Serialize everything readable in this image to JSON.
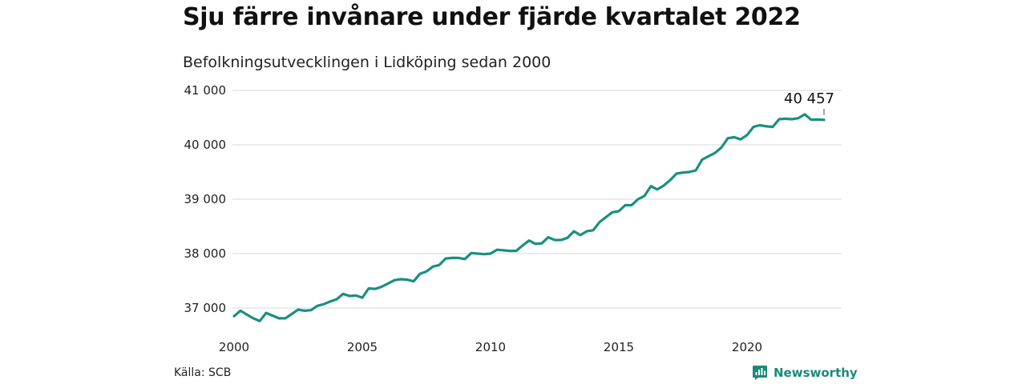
{
  "title": "Sju färre invånare under fjärde kvartalet 2022",
  "subtitle": "Befolkningsutvecklingen i Lidköping sedan 2000",
  "source": "Källa: SCB",
  "brand": {
    "name": "Newsworthy",
    "icon": "newsworthy-logo-icon",
    "color": "#1a8a7a"
  },
  "chart_data": {
    "type": "line",
    "title": "Sju färre invånare under fjärde kvartalet 2022",
    "subtitle": "Befolkningsutvecklingen i Lidköping sedan 2000",
    "xlabel": "",
    "ylabel": "",
    "grid": true,
    "line_color": "#1a9080",
    "xlim": [
      2000.0,
      2023.3
    ],
    "ylim": [
      36800,
      41000
    ],
    "x_ticks": [
      2000,
      2005,
      2010,
      2015,
      2020
    ],
    "x_tick_labels": [
      "2000",
      "2005",
      "2010",
      "2015",
      "2020"
    ],
    "y_ticks": [
      37000,
      38000,
      39000,
      40000,
      41000
    ],
    "y_tick_labels": [
      "37 000",
      "38 000",
      "39 000",
      "40 000",
      "41 000"
    ],
    "end_label": "40 457",
    "series": [
      {
        "x": [
          2000.0,
          2000.25,
          2000.5,
          2000.75,
          2001.0,
          2001.25,
          2001.5,
          2001.75,
          2002.0,
          2002.25,
          2002.5,
          2002.75,
          2003.0,
          2003.25,
          2003.5,
          2003.75,
          2004.0,
          2004.25,
          2004.5,
          2004.75,
          2005.0,
          2005.25,
          2005.5,
          2005.75,
          2006.0,
          2006.25,
          2006.5,
          2006.75,
          2007.0,
          2007.25,
          2007.5,
          2007.75,
          2008.0,
          2008.25,
          2008.5,
          2008.75,
          2009.0,
          2009.25,
          2009.5,
          2009.75,
          2010.0,
          2010.25,
          2010.5,
          2010.75,
          2011.0,
          2011.25,
          2011.5,
          2011.75,
          2012.0,
          2012.25,
          2012.5,
          2012.75,
          2013.0,
          2013.25,
          2013.5,
          2013.75,
          2014.0,
          2014.25,
          2014.5,
          2014.75,
          2015.0,
          2015.25,
          2015.5,
          2015.75,
          2016.0,
          2016.25,
          2016.5,
          2016.75,
          2017.0,
          2017.25,
          2017.5,
          2017.75,
          2018.0,
          2018.25,
          2018.5,
          2018.75,
          2019.0,
          2019.25,
          2019.5,
          2019.75,
          2020.0,
          2020.25,
          2020.5,
          2020.75,
          2021.0,
          2021.25,
          2021.5,
          2021.75,
          2022.0,
          2022.25,
          2022.5,
          2022.75,
          2023.0
        ],
        "values": [
          36850,
          36950,
          36880,
          36810,
          36760,
          36910,
          36860,
          36810,
          36810,
          36890,
          36970,
          36950,
          36960,
          37040,
          37070,
          37120,
          37160,
          37260,
          37220,
          37230,
          37190,
          37360,
          37350,
          37390,
          37450,
          37510,
          37530,
          37520,
          37490,
          37630,
          37670,
          37760,
          37790,
          37910,
          37920,
          37920,
          37900,
          38010,
          38000,
          37990,
          38000,
          38070,
          38060,
          38050,
          38050,
          38150,
          38240,
          38180,
          38190,
          38300,
          38250,
          38250,
          38290,
          38410,
          38340,
          38410,
          38430,
          38580,
          38670,
          38760,
          38780,
          38890,
          38890,
          39000,
          39060,
          39240,
          39180,
          39250,
          39350,
          39470,
          39490,
          39500,
          39530,
          39730,
          39790,
          39850,
          39950,
          40120,
          40140,
          40100,
          40180,
          40330,
          40360,
          40340,
          40330,
          40470,
          40480,
          40470,
          40490,
          40560,
          40460,
          40464,
          40457
        ]
      }
    ]
  }
}
